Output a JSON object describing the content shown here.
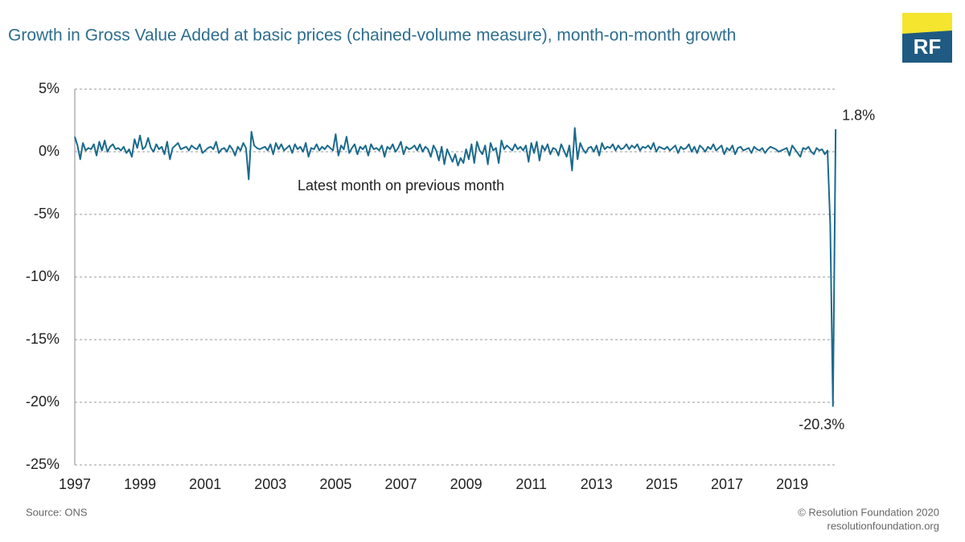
{
  "chart_data": {
    "type": "line",
    "title": "Growth in Gross Value Added at basic prices (chained-volume measure), month-on-month growth",
    "annotation": "Latest month on previous month",
    "source": "Source: ONS",
    "credit": "© Resolution Foundation 2020",
    "website": "resolutionfoundation.org",
    "logo": "RF",
    "color": "#1b6a8c",
    "grid": true,
    "ylim": [
      -25,
      5
    ],
    "yticks": [
      {
        "value": 5,
        "label": "5%"
      },
      {
        "value": 0,
        "label": "0%"
      },
      {
        "value": -5,
        "label": "-5%"
      },
      {
        "value": -10,
        "label": "-10%"
      },
      {
        "value": -15,
        "label": "-15%"
      },
      {
        "value": -20,
        "label": "-20%"
      },
      {
        "value": -25,
        "label": "-25%"
      }
    ],
    "categories": [
      "1997",
      null,
      null,
      null,
      null,
      null,
      null,
      null,
      null,
      null,
      null,
      null,
      null,
      null,
      null,
      null,
      null,
      null,
      null,
      null,
      null,
      null,
      null,
      null,
      "1999",
      null,
      null,
      null,
      null,
      null,
      null,
      null,
      null,
      null,
      null,
      null,
      null,
      null,
      null,
      null,
      null,
      null,
      null,
      null,
      null,
      null,
      null,
      null,
      "2001",
      null,
      null,
      null,
      null,
      null,
      null,
      null,
      null,
      null,
      null,
      null,
      null,
      null,
      null,
      null,
      null,
      null,
      null,
      null,
      null,
      null,
      null,
      null,
      "2003",
      null,
      null,
      null,
      null,
      null,
      null,
      null,
      null,
      null,
      null,
      null,
      null,
      null,
      null,
      null,
      null,
      null,
      null,
      null,
      null,
      null,
      null,
      null,
      "2005",
      null,
      null,
      null,
      null,
      null,
      null,
      null,
      null,
      null,
      null,
      null,
      null,
      null,
      null,
      null,
      null,
      null,
      null,
      null,
      null,
      null,
      null,
      null,
      "2007",
      null,
      null,
      null,
      null,
      null,
      null,
      null,
      null,
      null,
      null,
      null,
      null,
      null,
      null,
      null,
      null,
      null,
      null,
      null,
      null,
      null,
      null,
      null,
      "2009",
      null,
      null,
      null,
      null,
      null,
      null,
      null,
      null,
      null,
      null,
      null,
      null,
      null,
      null,
      null,
      null,
      null,
      null,
      null,
      null,
      null,
      null,
      null,
      "2011",
      null,
      null,
      null,
      null,
      null,
      null,
      null,
      null,
      null,
      null,
      null,
      null,
      null,
      null,
      null,
      null,
      null,
      null,
      null,
      null,
      null,
      null,
      null,
      "2013",
      null,
      null,
      null,
      null,
      null,
      null,
      null,
      null,
      null,
      null,
      null,
      null,
      null,
      null,
      null,
      null,
      null,
      null,
      null,
      null,
      null,
      null,
      null,
      "2015",
      null,
      null,
      null,
      null,
      null,
      null,
      null,
      null,
      null,
      null,
      null,
      null,
      null,
      null,
      null,
      null,
      null,
      null,
      null,
      null,
      null,
      null,
      null,
      "2017",
      null,
      null,
      null,
      null,
      null,
      null,
      null,
      null,
      null,
      null,
      null,
      null,
      null,
      null,
      null,
      null,
      null,
      null,
      null,
      null,
      null,
      null,
      null,
      "2019",
      null,
      null,
      null,
      null,
      null,
      null,
      null,
      null,
      null,
      null,
      null,
      null,
      null,
      null,
      null,
      null
    ],
    "values": [
      1.2,
      0.5,
      -0.6,
      0.7,
      0.1,
      0.3,
      0.2,
      0.6,
      -0.3,
      0.8,
      0.1,
      0.9,
      0.0,
      0.4,
      0.6,
      0.2,
      0.3,
      0.1,
      0.4,
      -0.1,
      0.2,
      -0.4,
      1.0,
      0.3,
      1.3,
      0.2,
      0.4,
      1.1,
      0.3,
      0.0,
      0.6,
      0.2,
      0.4,
      -0.2,
      0.8,
      -0.6,
      0.3,
      0.5,
      0.7,
      0.2,
      0.3,
      0.4,
      0.1,
      0.5,
      0.3,
      0.2,
      0.6,
      -0.1,
      0.1,
      0.3,
      0.4,
      0.2,
      0.8,
      -0.1,
      0.2,
      0.3,
      0.0,
      0.5,
      0.2,
      -0.3,
      0.4,
      0.1,
      0.7,
      0.3,
      -2.2,
      1.6,
      0.5,
      0.3,
      0.2,
      0.3,
      0.4,
      0.1,
      0.6,
      -0.2,
      0.7,
      0.2,
      0.6,
      0.1,
      0.3,
      0.5,
      -0.1,
      0.6,
      0.2,
      0.4,
      0.0,
      0.7,
      -0.4,
      0.3,
      0.2,
      0.6,
      0.1,
      0.4,
      0.2,
      0.5,
      0.3,
      0.1,
      1.4,
      -0.3,
      0.5,
      0.2,
      1.2,
      -0.1,
      0.3,
      0.6,
      -0.2,
      0.4,
      0.2,
      0.5,
      -0.3,
      0.6,
      0.2,
      0.3,
      0.1,
      0.5,
      -0.4,
      0.4,
      0.2,
      0.6,
      0.0,
      0.3,
      0.8,
      -0.2,
      0.4,
      0.2,
      0.3,
      0.5,
      0.1,
      0.6,
      0.0,
      0.4,
      0.2,
      -0.4,
      0.5,
      0.1,
      -0.7,
      0.4,
      -1.0,
      0.2,
      -0.3,
      -0.8,
      -0.2,
      -1.1,
      -0.5,
      -0.9,
      0.2,
      -0.6,
      0.6,
      -0.9,
      0.8,
      0.1,
      -0.2,
      0.5,
      -1.0,
      0.7,
      0.1,
      0.3,
      -0.9,
      0.9,
      0.2,
      0.5,
      0.3,
      0.1,
      0.6,
      0.2,
      0.4,
      0.1,
      0.5,
      -0.8,
      0.7,
      -0.1,
      0.8,
      -0.7,
      0.5,
      0.1,
      0.6,
      -0.2,
      0.3,
      0.2,
      -0.3,
      0.6,
      0.1,
      -0.4,
      0.5,
      -1.5,
      1.9,
      -0.6,
      0.7,
      0.2,
      -0.1,
      0.3,
      0.4,
      0.0,
      0.5,
      -0.3,
      0.7,
      0.2,
      0.4,
      0.3,
      0.6,
      0.1,
      0.5,
      0.2,
      0.3,
      0.6,
      0.2,
      0.5,
      0.3,
      0.6,
      0.1,
      0.4,
      0.3,
      0.5,
      0.2,
      0.7,
      0.0,
      0.4,
      0.3,
      0.2,
      0.4,
      0.1,
      0.3,
      0.5,
      -0.1,
      0.4,
      0.2,
      0.3,
      0.6,
      0.0,
      0.4,
      -0.1,
      0.5,
      0.3,
      0.0,
      0.4,
      0.2,
      0.6,
      0.1,
      0.3,
      0.5,
      -0.2,
      0.3,
      0.1,
      0.5,
      -0.2,
      0.3,
      0.4,
      0.1,
      0.2,
      0.3,
      -0.1,
      0.4,
      0.2,
      0.1,
      0.3,
      -0.1,
      0.2,
      0.4,
      0.3,
      0.2,
      0.0,
      0.1,
      0.2,
      0.3,
      -0.3,
      0.5,
      0.2,
      -0.1,
      -0.4,
      0.3,
      0.2,
      0.4,
      0.0,
      -0.2,
      0.3,
      0.1,
      0.2,
      -0.2,
      0.1,
      -5.8,
      -20.3,
      1.8
    ],
    "value_labels": [
      null,
      null,
      null,
      null,
      null,
      null,
      null,
      null,
      null,
      null,
      null,
      null,
      null,
      null,
      null,
      null,
      null,
      null,
      null,
      null,
      null,
      null,
      null,
      null,
      null,
      null,
      null,
      null,
      null,
      null,
      null,
      null,
      null,
      null,
      null,
      null,
      null,
      null,
      null,
      null,
      null,
      null,
      null,
      null,
      null,
      null,
      null,
      null,
      null,
      null,
      null,
      null,
      null,
      null,
      null,
      null,
      null,
      null,
      null,
      null,
      null,
      null,
      null,
      null,
      null,
      null,
      null,
      null,
      null,
      null,
      null,
      null,
      null,
      null,
      null,
      null,
      null,
      null,
      null,
      null,
      null,
      null,
      null,
      null,
      null,
      null,
      null,
      null,
      null,
      null,
      null,
      null,
      null,
      null,
      null,
      null,
      null,
      null,
      null,
      null,
      null,
      null,
      null,
      null,
      null,
      null,
      null,
      null,
      null,
      null,
      null,
      null,
      null,
      null,
      null,
      null,
      null,
      null,
      null,
      null,
      null,
      null,
      null,
      null,
      null,
      null,
      null,
      null,
      null,
      null,
      null,
      null,
      null,
      null,
      null,
      null,
      null,
      null,
      null,
      null,
      null,
      null,
      null,
      null,
      null,
      null,
      null,
      null,
      null,
      null,
      null,
      null,
      null,
      null,
      null,
      null,
      null,
      null,
      null,
      null,
      null,
      null,
      null,
      null,
      null,
      null,
      null,
      null,
      null,
      null,
      null,
      null,
      null,
      null,
      null,
      null,
      null,
      null,
      null,
      null,
      null,
      null,
      null,
      null,
      null,
      null,
      null,
      null,
      null,
      null,
      null,
      null,
      null,
      null,
      null,
      null,
      null,
      null,
      null,
      null,
      null,
      null,
      null,
      null,
      null,
      null,
      null,
      null,
      null,
      null,
      null,
      null,
      null,
      null,
      null,
      null,
      null,
      null,
      null,
      null,
      null,
      null,
      null,
      null,
      null,
      null,
      null,
      null,
      null,
      null,
      null,
      null,
      null,
      null,
      null,
      null,
      null,
      null,
      null,
      null,
      null,
      null,
      null,
      null,
      null,
      null,
      null,
      null,
      null,
      null,
      null,
      null,
      null,
      null,
      null,
      null,
      null,
      null,
      null,
      null,
      null,
      null,
      null,
      null,
      null,
      null,
      null,
      null,
      null,
      null,
      null,
      null,
      null,
      null,
      null,
      null,
      null,
      null,
      null,
      "-20.3%",
      "1.8%"
    ]
  }
}
